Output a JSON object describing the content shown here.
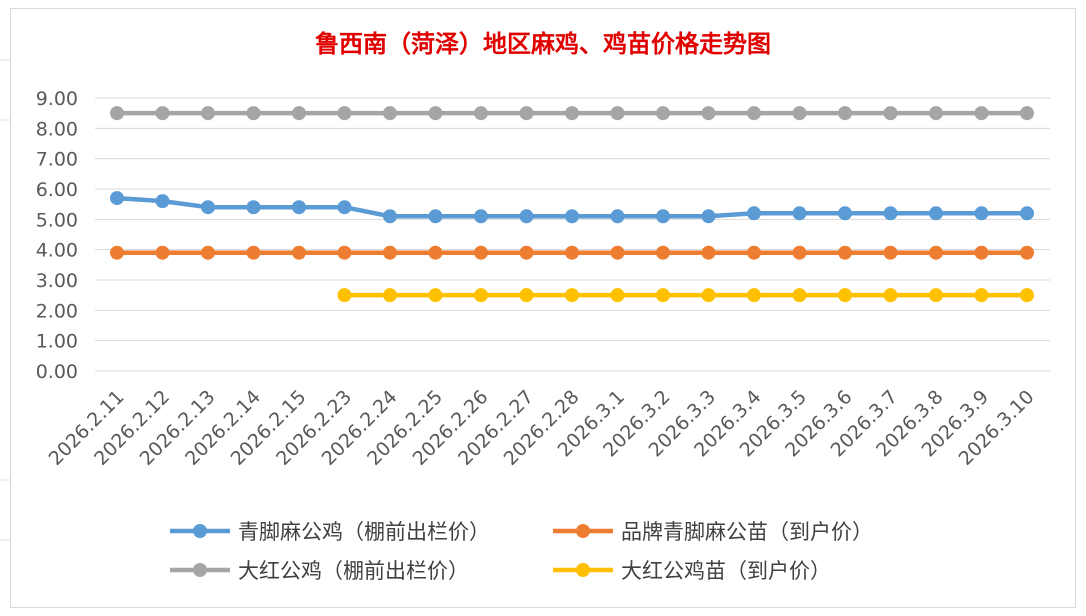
{
  "chart_data": {
    "type": "line",
    "title": "鲁西南（菏泽）地区麻鸡、鸡苗价格走势图",
    "xlabel": "",
    "ylabel": "",
    "ylim": [
      0,
      9
    ],
    "y_ticks": [
      "0.00",
      "1.00",
      "2.00",
      "3.00",
      "4.00",
      "5.00",
      "6.00",
      "7.00",
      "8.00",
      "9.00"
    ],
    "categories": [
      "2026.2.11",
      "2026.2.12",
      "2026.2.13",
      "2026.2.14",
      "2026.2.15",
      "2026.2.23",
      "2026.2.24",
      "2026.2.25",
      "2026.2.26",
      "2026.2.27",
      "2026.2.28",
      "2026.3.1",
      "2026.3.2",
      "2026.3.3",
      "2026.3.4",
      "2026.3.5",
      "2026.3.6",
      "2026.3.7",
      "2026.3.8",
      "2026.3.9",
      "2026.3.10"
    ],
    "grid": true,
    "legend_position": "bottom",
    "series": [
      {
        "name": "青脚麻公鸡（棚前出栏价）",
        "color": "#5b9bd5",
        "values": [
          5.7,
          5.6,
          5.4,
          5.4,
          5.4,
          5.4,
          5.1,
          5.1,
          5.1,
          5.1,
          5.1,
          5.1,
          5.1,
          5.1,
          5.2,
          5.2,
          5.2,
          5.2,
          5.2,
          5.2,
          5.2
        ]
      },
      {
        "name": "品牌青脚麻公苗（到户价）",
        "color": "#ed7d31",
        "values": [
          3.9,
          3.9,
          3.9,
          3.9,
          3.9,
          3.9,
          3.9,
          3.9,
          3.9,
          3.9,
          3.9,
          3.9,
          3.9,
          3.9,
          3.9,
          3.9,
          3.9,
          3.9,
          3.9,
          3.9,
          3.9
        ]
      },
      {
        "name": "大红公鸡（棚前出栏价）",
        "color": "#a5a5a5",
        "values": [
          8.5,
          8.5,
          8.5,
          8.5,
          8.5,
          8.5,
          8.5,
          8.5,
          8.5,
          8.5,
          8.5,
          8.5,
          8.5,
          8.5,
          8.5,
          8.5,
          8.5,
          8.5,
          8.5,
          8.5,
          8.5
        ]
      },
      {
        "name": "大红公鸡苗（到户价）",
        "color": "#ffc000",
        "values": [
          null,
          null,
          null,
          null,
          null,
          2.5,
          2.5,
          2.5,
          2.5,
          2.5,
          2.5,
          2.5,
          2.5,
          2.5,
          2.5,
          2.5,
          2.5,
          2.5,
          2.5,
          2.5,
          2.5
        ]
      }
    ]
  }
}
